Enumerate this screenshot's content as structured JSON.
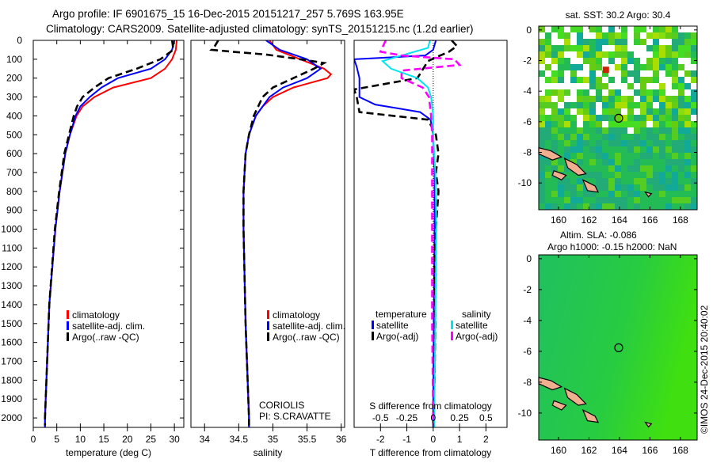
{
  "title_line1": "Argo profile: IF 6901675_15 16-Dec-2015 20151217_257 5.769S 163.95E",
  "title_line2": "Climatology: CARS2009. Satellite-adjusted climatology: synTS_20151215.nc (1.2d earlier)",
  "footer_stamp": "©IMOS 24-Dec-2015 20:40:02",
  "colors": {
    "climatology": "#ff0000",
    "satellite": "#0000ff",
    "argo": "#000000",
    "sal_satellite": "#00e5ee",
    "sal_argo": "#ff00ff"
  },
  "chart_data": [
    {
      "type": "line",
      "id": "temperature",
      "xlabel": "temperature (deg C)",
      "ylabel": "",
      "xlim": [
        0,
        32
      ],
      "ylim": [
        2050,
        0
      ],
      "xticks": [
        0,
        5,
        10,
        15,
        20,
        25,
        30
      ],
      "yticks": [
        0,
        100,
        200,
        300,
        400,
        500,
        600,
        700,
        800,
        900,
        1000,
        1100,
        1200,
        1300,
        1400,
        1500,
        1600,
        1700,
        1800,
        1900,
        2000
      ],
      "legend": [
        "climatology",
        "satellite-adj. clim.",
        "Argo(..raw -QC)"
      ],
      "legend_placement": "lower-center",
      "series": [
        {
          "name": "climatology",
          "style": "solid",
          "color": "#ff0000",
          "depth": [
            0,
            50,
            100,
            150,
            200,
            250,
            300,
            350,
            400,
            500,
            600,
            800,
            1000,
            1400,
            2000,
            2050
          ],
          "values": [
            30.5,
            30.3,
            29.5,
            28,
            25,
            17,
            13,
            10.5,
            9.2,
            7.8,
            6.8,
            5.6,
            4.7,
            3.4,
            2.5,
            2.5
          ]
        },
        {
          "name": "satellite-adj. clim.",
          "style": "solid",
          "color": "#0000ff",
          "depth": [
            0,
            50,
            100,
            150,
            200,
            250,
            300,
            350,
            400,
            500,
            600,
            800,
            1000,
            1400,
            2000,
            2050
          ],
          "values": [
            30,
            29.5,
            28,
            25,
            18,
            14.5,
            12,
            10,
            9,
            7.8,
            6.8,
            5.6,
            4.7,
            3.4,
            2.5,
            2.5
          ]
        },
        {
          "name": "Argo(..raw -QC)",
          "style": "dashed",
          "color": "#000000",
          "depth": [
            0,
            50,
            100,
            150,
            200,
            250,
            300,
            350,
            400,
            500,
            600,
            800,
            1000,
            1400,
            2000,
            2040
          ],
          "values": [
            29.5,
            29.8,
            27,
            22,
            16,
            13,
            10.5,
            9.3,
            8.6,
            7.6,
            6.6,
            5.5,
            4.6,
            3.4,
            2.5,
            2.5
          ]
        }
      ]
    },
    {
      "type": "line",
      "id": "salinity",
      "xlabel": "salinity",
      "xlim": [
        33.8,
        36.05
      ],
      "ylim": [
        2050,
        0
      ],
      "xticks": [
        34,
        34.5,
        35,
        35.5,
        36
      ],
      "legend": [
        "climatology",
        "satellite-adj. clim.",
        "Argo(..raw -QC)"
      ],
      "annotation": [
        "CORIOLIS",
        "PI: S.CRAVATTE"
      ],
      "series": [
        {
          "name": "climatology",
          "style": "solid",
          "color": "#ff0000",
          "depth": [
            0,
            50,
            100,
            150,
            180,
            200,
            250,
            300,
            350,
            400,
            500,
            600,
            800,
            1000,
            1500,
            2000,
            2050
          ],
          "values": [
            34.95,
            35.05,
            35.4,
            35.75,
            35.85,
            35.8,
            35.3,
            35.0,
            34.85,
            34.75,
            34.65,
            34.6,
            34.57,
            34.57,
            34.6,
            34.65,
            34.65
          ]
        },
        {
          "name": "satellite-adj. clim.",
          "style": "solid",
          "color": "#0000ff",
          "depth": [
            0,
            50,
            100,
            150,
            200,
            250,
            300,
            400,
            500,
            600,
            800,
            1000,
            1500,
            2000,
            2050
          ],
          "values": [
            34.9,
            35.1,
            35.5,
            35.7,
            35.5,
            35.15,
            34.95,
            34.75,
            34.65,
            34.6,
            34.57,
            34.57,
            34.6,
            34.65,
            34.65
          ]
        },
        {
          "name": "Argo(..raw -QC)",
          "style": "dashed",
          "color": "#000000",
          "depth": [
            0,
            30,
            50,
            60,
            75,
            100,
            120,
            150,
            200,
            250,
            300,
            400,
            500,
            600,
            800,
            1000,
            1500,
            2000,
            2040
          ],
          "values": [
            34.2,
            34.15,
            34.1,
            34.4,
            34.9,
            35.4,
            35.75,
            35.6,
            35.3,
            35.0,
            34.85,
            34.72,
            34.65,
            34.6,
            34.57,
            34.57,
            34.6,
            34.65,
            34.65
          ]
        }
      ]
    },
    {
      "type": "line",
      "id": "differences",
      "xlabel": "T difference from climatology",
      "xlim": [
        -3,
        2.8
      ],
      "ylim": [
        2050,
        0
      ],
      "xticks": [
        -2,
        -1,
        0,
        1,
        2
      ],
      "x2label": "S difference from climatology",
      "x2lim": [
        -0.75,
        0.7
      ],
      "x2ticks": [
        -0.5,
        -0.25,
        0,
        0.25,
        0.5
      ],
      "legend_titles": [
        "temperature",
        "salinity"
      ],
      "legend": [
        "satellite",
        "Argo(-adj)",
        "satellite",
        "Argo(-adj)"
      ],
      "series": [
        {
          "name": "T satellite",
          "axis": "T",
          "style": "solid",
          "color": "#0000ff",
          "depth": [
            0,
            50,
            80,
            100,
            140,
            200,
            300,
            340,
            380,
            420,
            500,
            700,
            1000,
            1500,
            2000,
            2050
          ],
          "values": [
            0.1,
            0.0,
            -0.3,
            -3,
            -2.9,
            -2.8,
            -2.8,
            -2.2,
            -0.5,
            -0.1,
            0,
            0.05,
            0.05,
            0.02,
            0,
            0
          ]
        },
        {
          "name": "T Argo(-adj)",
          "axis": "T",
          "style": "dashed",
          "color": "#000000",
          "depth": [
            0,
            30,
            60,
            90,
            110,
            200,
            260,
            300,
            380,
            420,
            500,
            600,
            700,
            800,
            900,
            1000,
            1200,
            1500,
            1800,
            2040
          ],
          "values": [
            0.7,
            0.9,
            0.6,
            0.1,
            -0.2,
            -0.6,
            -3,
            -2.9,
            -2.8,
            -0.2,
            0.1,
            0.2,
            0.1,
            0.2,
            0.15,
            0.1,
            0.05,
            0.08,
            0.05,
            0
          ]
        },
        {
          "name": "S satellite",
          "axis": "S",
          "style": "solid",
          "color": "#00e5ee",
          "depth": [
            0,
            40,
            80,
            110,
            150,
            200,
            250,
            300,
            400,
            500,
            700,
            1000,
            1500,
            2000,
            2050
          ],
          "values": [
            -0.03,
            -0.05,
            -0.3,
            -0.48,
            -0.4,
            -0.15,
            -0.05,
            -0.02,
            0,
            0,
            0.02,
            0.03,
            0.02,
            0.01,
            0.01
          ]
        },
        {
          "name": "S Argo(-adj)",
          "axis": "S",
          "style": "dashed",
          "color": "#ff00ff",
          "depth": [
            0,
            60,
            80,
            100,
            130,
            160,
            200,
            250,
            300,
            400,
            500,
            700,
            1000,
            1500,
            2000,
            2040
          ],
          "values": [
            -0.45,
            -0.5,
            -0.3,
            0.2,
            0.25,
            -0.3,
            -0.3,
            -0.1,
            -0.04,
            -0.02,
            -0.01,
            -0.01,
            -0.01,
            -0.01,
            0,
            0
          ]
        }
      ]
    },
    {
      "type": "heatmap",
      "id": "sst-map",
      "title": "sat. SST: 30.2  Argo: 30.4",
      "xlim": [
        158.7,
        169.1
      ],
      "ylim": [
        -11.75,
        0.25
      ],
      "xticks": [
        160,
        162,
        164,
        166,
        168
      ],
      "yticks": [
        0,
        -2,
        -4,
        -6,
        -8,
        -10
      ],
      "marker": {
        "lon": 163.95,
        "lat": -5.769
      }
    },
    {
      "type": "heatmap",
      "id": "sla-map",
      "title": [
        "Altim. SLA: -0.086",
        "Argo h1000: -0.15 h2000: NaN"
      ],
      "xlim": [
        158.7,
        169.1
      ],
      "ylim": [
        -11.75,
        0.25
      ],
      "xticks": [
        160,
        162,
        164,
        166,
        168
      ],
      "yticks": [
        0,
        -2,
        -4,
        -6,
        -8,
        -10
      ],
      "marker": {
        "lon": 163.95,
        "lat": -5.769
      }
    }
  ]
}
